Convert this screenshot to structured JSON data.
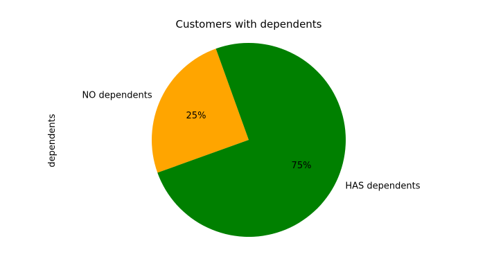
{
  "chart_data": {
    "type": "pie",
    "title": "Customers with dependents",
    "ylabel": "dependents",
    "slices": [
      {
        "label": "HAS dependents",
        "value": 75,
        "pct_label": "75%",
        "color": "#008000"
      },
      {
        "label": "NO dependents",
        "value": 25,
        "pct_label": "25%",
        "color": "#ffa500"
      }
    ]
  }
}
